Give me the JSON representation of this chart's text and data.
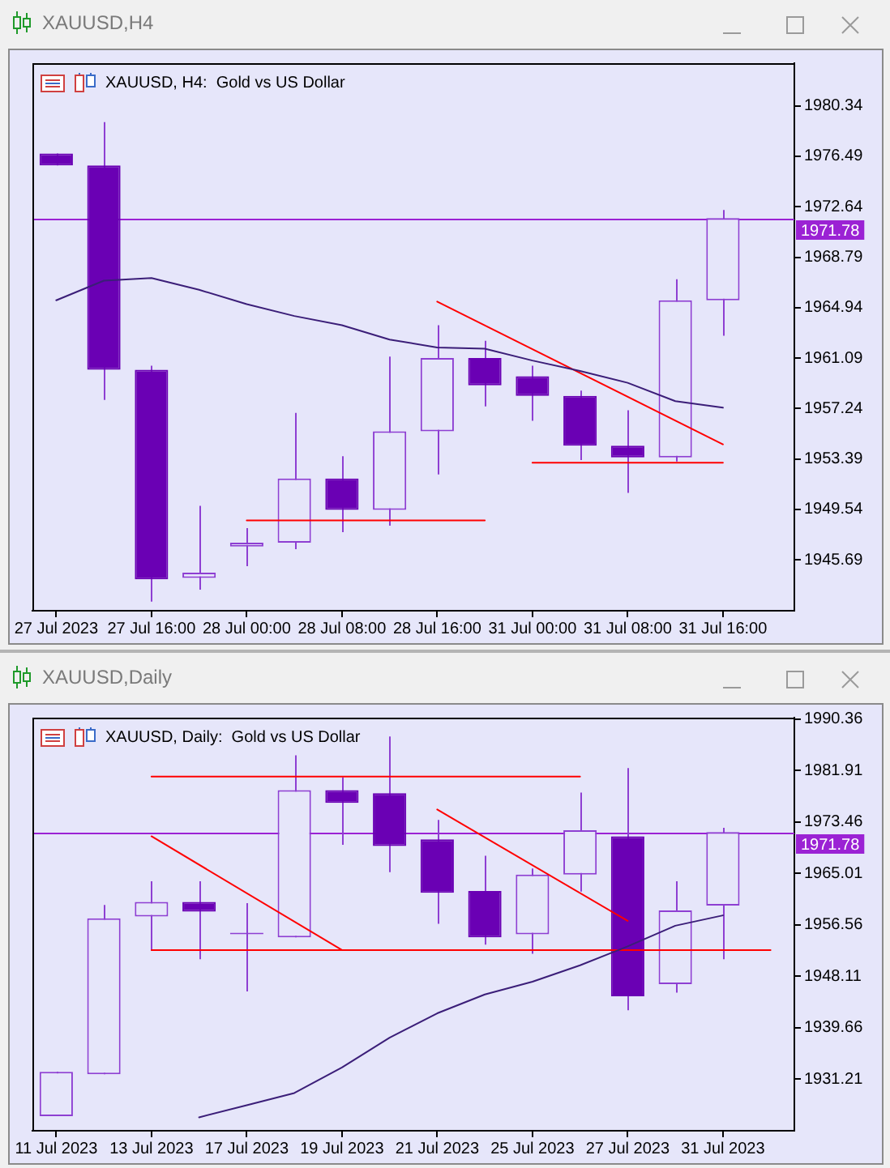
{
  "chart_data": [
    {
      "type": "candlestick",
      "title": "XAUUSD,H4",
      "subtitle": "XAUUSD, H4:  Gold vs US Dollar",
      "categories": [
        "27 Jul 2023",
        null,
        "27 Jul 16:00",
        null,
        "28 Jul 00:00",
        null,
        "28 Jul 08:00",
        null,
        "28 Jul 16:00",
        null,
        "31 Jul 00:00",
        null,
        "31 Jul 08:00",
        null,
        "31 Jul 16:00",
        null
      ],
      "ohlc": [
        [
          1976.7,
          1976.7,
          1975.8,
          1975.8
        ],
        [
          1975.8,
          1979.1,
          1957.9,
          1960.2
        ],
        [
          1960.2,
          1960.5,
          1942.5,
          1944.2
        ],
        [
          1944.3,
          1949.8,
          1943.4,
          1944.7
        ],
        [
          1946.7,
          1948.1,
          1945.2,
          1947.0
        ],
        [
          1947.0,
          1956.9,
          1946.5,
          1951.9
        ],
        [
          1951.9,
          1953.6,
          1947.8,
          1949.5
        ],
        [
          1949.5,
          1961.2,
          1948.3,
          1955.5
        ],
        [
          1955.5,
          1963.6,
          1952.2,
          1961.1
        ],
        [
          1961.1,
          1962.4,
          1957.4,
          1959.0
        ],
        [
          1959.7,
          1960.5,
          1956.3,
          1958.2
        ],
        [
          1958.2,
          1958.6,
          1953.3,
          1954.4
        ],
        [
          1954.4,
          1957.1,
          1950.8,
          1953.5
        ],
        [
          1953.5,
          1967.1,
          1953.2,
          1965.5
        ],
        [
          1965.5,
          1972.4,
          1962.8,
          1971.78
        ],
        null
      ],
      "color": "#8e3fd2",
      "colors": [
        "#6a00b4",
        "#6a00b4",
        "#6a00b4",
        "#8e3fd2",
        "#8e3fd2",
        "#8e3fd2",
        "#6a00b4",
        "#8e3fd2",
        "#8e3fd2",
        "#6a00b4",
        "#6a00b4",
        "#6a00b4",
        "#6a00b4",
        "#8e3fd2",
        "#8e3fd2",
        null
      ],
      "series": [
        {
          "type": "line",
          "color": "#3b1e78",
          "values": [
            1965.5,
            1967.0,
            1967.2,
            1966.3,
            1965.2,
            1964.3,
            1963.6,
            1962.5,
            1961.9,
            1961.8,
            1960.9,
            1960.1,
            1959.2,
            1957.8,
            1957.3,
            null
          ]
        },
        {
          "type": "line",
          "color": "#ff0000",
          "values": [
            null,
            null,
            null,
            null,
            1948.7,
            1948.7,
            1948.7,
            1948.7,
            1948.7,
            1948.7,
            null,
            null,
            null,
            null,
            null,
            null
          ]
        },
        {
          "type": "line",
          "color": "#ff0000",
          "values": [
            null,
            null,
            null,
            null,
            null,
            null,
            null,
            null,
            1965.4,
            null,
            null,
            null,
            null,
            null,
            1954.5,
            null
          ]
        },
        {
          "type": "line",
          "color": "#ff0000",
          "values": [
            null,
            null,
            null,
            null,
            null,
            null,
            null,
            null,
            null,
            null,
            1953.1,
            1953.1,
            1953.1,
            1953.1,
            1953.1,
            null
          ]
        }
      ],
      "ylim": [
        1941.8,
        1983.6
      ],
      "yticks": [
        1945.69,
        1949.54,
        1953.39,
        1957.24,
        1961.09,
        1964.94,
        1968.79,
        1972.64,
        1976.49,
        1980.34
      ],
      "ref_lines": [
        {
          "axis": "y",
          "value": 1971.78,
          "label": "1971.78",
          "color": "#9b22d4"
        }
      ],
      "grid": false,
      "legend": false
    },
    {
      "type": "candlestick",
      "title": "XAUUSD,Daily",
      "subtitle": "XAUUSD, Daily:  Gold vs US Dollar",
      "categories": [
        "11 Jul 2023",
        null,
        "13 Jul 2023",
        null,
        "17 Jul 2023",
        null,
        "19 Jul 2023",
        null,
        "21 Jul 2023",
        null,
        "25 Jul 2023",
        null,
        "27 Jul 2023",
        null,
        "31 Jul 2023",
        null
      ],
      "ohlc": [
        [
          1925.1,
          1932.4,
          1925.1,
          1932.4
        ],
        [
          1932.0,
          1959.8,
          1932.0,
          1957.6
        ],
        [
          1957.9,
          1963.7,
          1952.3,
          1960.3
        ],
        [
          1960.3,
          1963.7,
          1950.9,
          1958.7
        ],
        [
          1955.0,
          1960.1,
          1945.6,
          1955.0
        ],
        [
          1954.5,
          1984.4,
          1954.5,
          1978.7
        ],
        [
          1978.7,
          1980.8,
          1969.7,
          1976.6
        ],
        [
          1978.2,
          1987.5,
          1965.2,
          1969.5
        ],
        [
          1970.6,
          1973.8,
          1956.7,
          1961.8
        ],
        [
          1962.1,
          1967.9,
          1953.3,
          1954.5
        ],
        [
          1955.0,
          1965.8,
          1951.8,
          1964.8
        ],
        [
          1964.8,
          1978.3,
          1962.0,
          1972.1
        ],
        [
          1971.1,
          1982.3,
          1942.5,
          1944.8
        ],
        [
          1946.8,
          1963.7,
          1945.4,
          1958.9
        ],
        [
          1959.7,
          1972.5,
          1950.9,
          1971.78
        ],
        null
      ],
      "color": "#8e3fd2",
      "colors": [
        "#8e3fd2",
        "#8e3fd2",
        "#8e3fd2",
        "#6a00b4",
        "#8e3fd2",
        "#8e3fd2",
        "#6a00b4",
        "#6a00b4",
        "#6a00b4",
        "#6a00b4",
        "#8e3fd2",
        "#8e3fd2",
        "#6a00b4",
        "#8e3fd2",
        "#8e3fd2",
        null
      ],
      "series": [
        {
          "type": "line",
          "color": "#3b1e78",
          "values": [
            null,
            null,
            null,
            1924.9,
            1926.9,
            1928.9,
            1933.1,
            1938.0,
            1942.0,
            1945.1,
            1947.2,
            1949.9,
            1953.0,
            1956.4,
            1958.1,
            null
          ]
        },
        {
          "type": "line",
          "color": "#ff0000",
          "values": [
            null,
            null,
            1980.9,
            1980.9,
            1980.9,
            1980.9,
            1980.9,
            1980.9,
            1980.9,
            1980.9,
            1980.9,
            1980.9,
            null,
            null,
            null,
            null
          ]
        },
        {
          "type": "line",
          "color": "#ff0000",
          "values": [
            null,
            null,
            1971.1,
            null,
            null,
            null,
            1952.4,
            null,
            null,
            null,
            null,
            null,
            null,
            null,
            null,
            null
          ]
        },
        {
          "type": "line",
          "color": "#ff0000",
          "values": [
            null,
            null,
            1952.4,
            1952.4,
            1952.4,
            1952.4,
            1952.4,
            1952.4,
            1952.4,
            1952.4,
            1952.4,
            1952.4,
            1952.4,
            1952.4,
            1952.4,
            1952.4
          ]
        },
        {
          "type": "line",
          "color": "#ff0000",
          "values": [
            null,
            null,
            null,
            null,
            null,
            null,
            null,
            null,
            1975.5,
            null,
            null,
            null,
            1957.2,
            null,
            null,
            null
          ]
        }
      ],
      "ylim": [
        1922.7,
        1990.6
      ],
      "yticks": [
        1931.21,
        1939.66,
        1948.11,
        1956.56,
        1965.01,
        1973.46,
        1981.91,
        1990.36
      ],
      "ref_lines": [
        {
          "axis": "y",
          "value": 1971.78,
          "label": "1971.78",
          "color": "#9b22d4"
        }
      ],
      "grid": false,
      "legend": false
    }
  ]
}
